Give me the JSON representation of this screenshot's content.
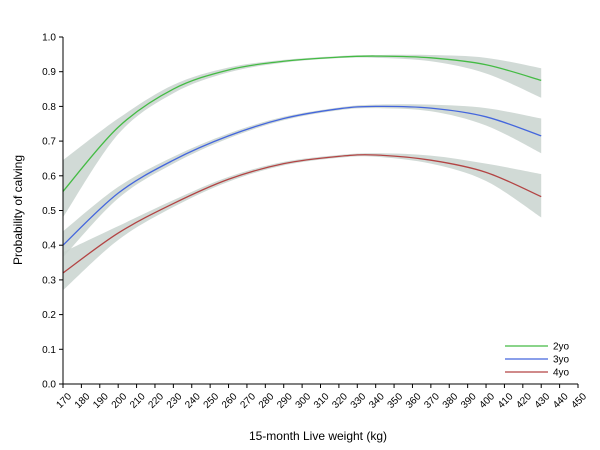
{
  "chart_data": {
    "type": "line",
    "title": "",
    "xlabel": "15-month Live weight (kg)",
    "ylabel": "Probability of calving",
    "xlim": [
      170,
      450
    ],
    "ylim": [
      0.0,
      1.0
    ],
    "x_ticks": [
      170,
      180,
      190,
      200,
      210,
      220,
      230,
      240,
      250,
      260,
      270,
      280,
      290,
      300,
      310,
      320,
      330,
      340,
      350,
      360,
      370,
      380,
      390,
      400,
      410,
      420,
      430,
      440,
      450
    ],
    "y_ticks": [
      0.0,
      0.1,
      0.2,
      0.3,
      0.4,
      0.5,
      0.6,
      0.7,
      0.8,
      0.9,
      1.0
    ],
    "y_tick_labels": [
      "0.0",
      "0.1",
      "0.2",
      "0.3",
      "0.4",
      "0.5",
      "0.6",
      "0.7",
      "0.8",
      "0.9",
      "1.0"
    ],
    "grid": false,
    "legend_position": "bottom-right",
    "band_color": "#c9d4cf",
    "x": [
      170,
      200,
      230,
      260,
      290,
      320,
      340,
      370,
      400,
      430
    ],
    "series": [
      {
        "name": "2yo",
        "color": "#44bb44",
        "values": [
          0.555,
          0.74,
          0.85,
          0.905,
          0.93,
          0.942,
          0.945,
          0.94,
          0.92,
          0.875
        ],
        "lower": [
          0.48,
          0.72,
          0.838,
          0.898,
          0.926,
          0.939,
          0.94,
          0.93,
          0.895,
          0.825
        ],
        "upper": [
          0.645,
          0.765,
          0.862,
          0.912,
          0.934,
          0.945,
          0.948,
          0.948,
          0.94,
          0.91
        ]
      },
      {
        "name": "3yo",
        "color": "#4466dd",
        "values": [
          0.4,
          0.55,
          0.645,
          0.715,
          0.765,
          0.793,
          0.8,
          0.795,
          0.77,
          0.715
        ],
        "lower": [
          0.365,
          0.535,
          0.635,
          0.708,
          0.76,
          0.789,
          0.795,
          0.786,
          0.745,
          0.665
        ],
        "upper": [
          0.44,
          0.568,
          0.655,
          0.722,
          0.77,
          0.797,
          0.805,
          0.805,
          0.795,
          0.765
        ]
      },
      {
        "name": "4yo",
        "color": "#b34444",
        "values": [
          0.32,
          0.435,
          0.52,
          0.59,
          0.635,
          0.656,
          0.66,
          0.645,
          0.61,
          0.54
        ],
        "lower": [
          0.27,
          0.415,
          0.51,
          0.583,
          0.63,
          0.652,
          0.655,
          0.635,
          0.585,
          0.48
        ],
        "upper": [
          0.38,
          0.455,
          0.53,
          0.597,
          0.64,
          0.66,
          0.665,
          0.658,
          0.635,
          0.605
        ]
      }
    ]
  }
}
